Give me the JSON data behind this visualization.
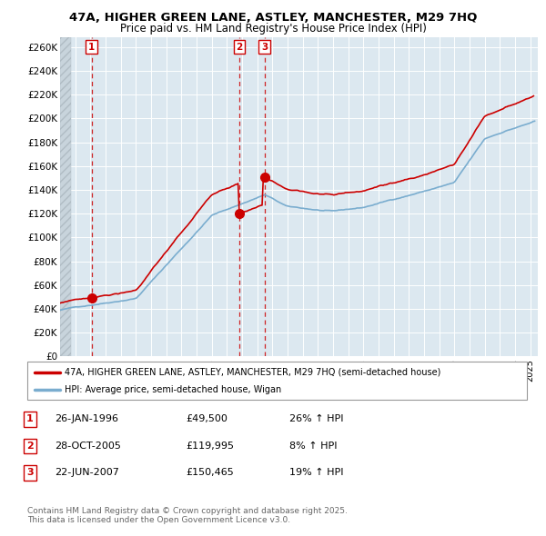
{
  "title1": "47A, HIGHER GREEN LANE, ASTLEY, MANCHESTER, M29 7HQ",
  "title2": "Price paid vs. HM Land Registry's House Price Index (HPI)",
  "ylabel_ticks": [
    "£0",
    "£20K",
    "£40K",
    "£60K",
    "£80K",
    "£100K",
    "£120K",
    "£140K",
    "£160K",
    "£180K",
    "£200K",
    "£220K",
    "£240K",
    "£260K"
  ],
  "ytick_values": [
    0,
    20000,
    40000,
    60000,
    80000,
    100000,
    120000,
    140000,
    160000,
    180000,
    200000,
    220000,
    240000,
    260000
  ],
  "xmin": 1994.0,
  "xmax": 2025.5,
  "ymin": 0,
  "ymax": 268000,
  "legend_line1": "47A, HIGHER GREEN LANE, ASTLEY, MANCHESTER, M29 7HQ (semi-detached house)",
  "legend_line2": "HPI: Average price, semi-detached house, Wigan",
  "sale1_date": 1996.07,
  "sale1_price": 49500,
  "sale2_date": 2005.82,
  "sale2_price": 119995,
  "sale3_date": 2007.47,
  "sale3_price": 150465,
  "table_data": [
    [
      "1",
      "26-JAN-1996",
      "£49,500",
      "26% ↑ HPI"
    ],
    [
      "2",
      "28-OCT-2005",
      "£119,995",
      "8% ↑ HPI"
    ],
    [
      "3",
      "22-JUN-2007",
      "£150,465",
      "19% ↑ HPI"
    ]
  ],
  "footnote1": "Contains HM Land Registry data © Crown copyright and database right 2025.",
  "footnote2": "This data is licensed under the Open Government Licence v3.0.",
  "property_color": "#cc0000",
  "hpi_color": "#7aadcf",
  "background_color": "#dce8f0",
  "grid_color": "#ffffff",
  "dashed_vline_color": "#cc0000",
  "hatch_color": "#c0c8d0"
}
